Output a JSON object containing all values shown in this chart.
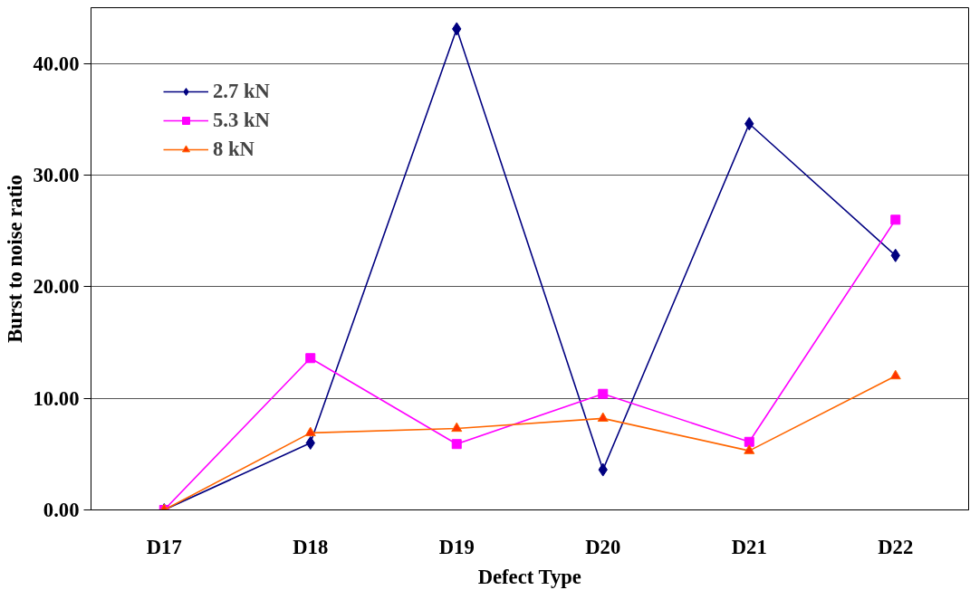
{
  "chart_data": {
    "type": "line",
    "xlabel": "Defect Type",
    "ylabel": "Burst to noise ratio",
    "categories": [
      "D17",
      "D18",
      "D19",
      "D20",
      "D21",
      "D22"
    ],
    "series": [
      {
        "name": "2.7 kN",
        "color": "#000080",
        "marker": "diamond",
        "values": [
          0,
          6.0,
          43.1,
          3.6,
          34.6,
          22.8
        ]
      },
      {
        "name": "5.3 kN",
        "color": "#ff00ff",
        "marker": "square",
        "values": [
          0,
          13.6,
          5.9,
          10.4,
          6.1,
          26.0
        ]
      },
      {
        "name": "8 kN",
        "color": "#ff6600",
        "marker": "triangle",
        "values": [
          0,
          6.9,
          7.3,
          8.2,
          5.3,
          12.0
        ]
      }
    ],
    "ylim": [
      0,
      45
    ],
    "yticks": [
      {
        "value": 0,
        "label": "0.00"
      },
      {
        "value": 10,
        "label": "10.00"
      },
      {
        "value": 20,
        "label": "20.00"
      },
      {
        "value": 30,
        "label": "30.00"
      },
      {
        "value": 40,
        "label": "40.00"
      }
    ],
    "grid": "y",
    "legend": "top left",
    "line_style": "solid"
  }
}
